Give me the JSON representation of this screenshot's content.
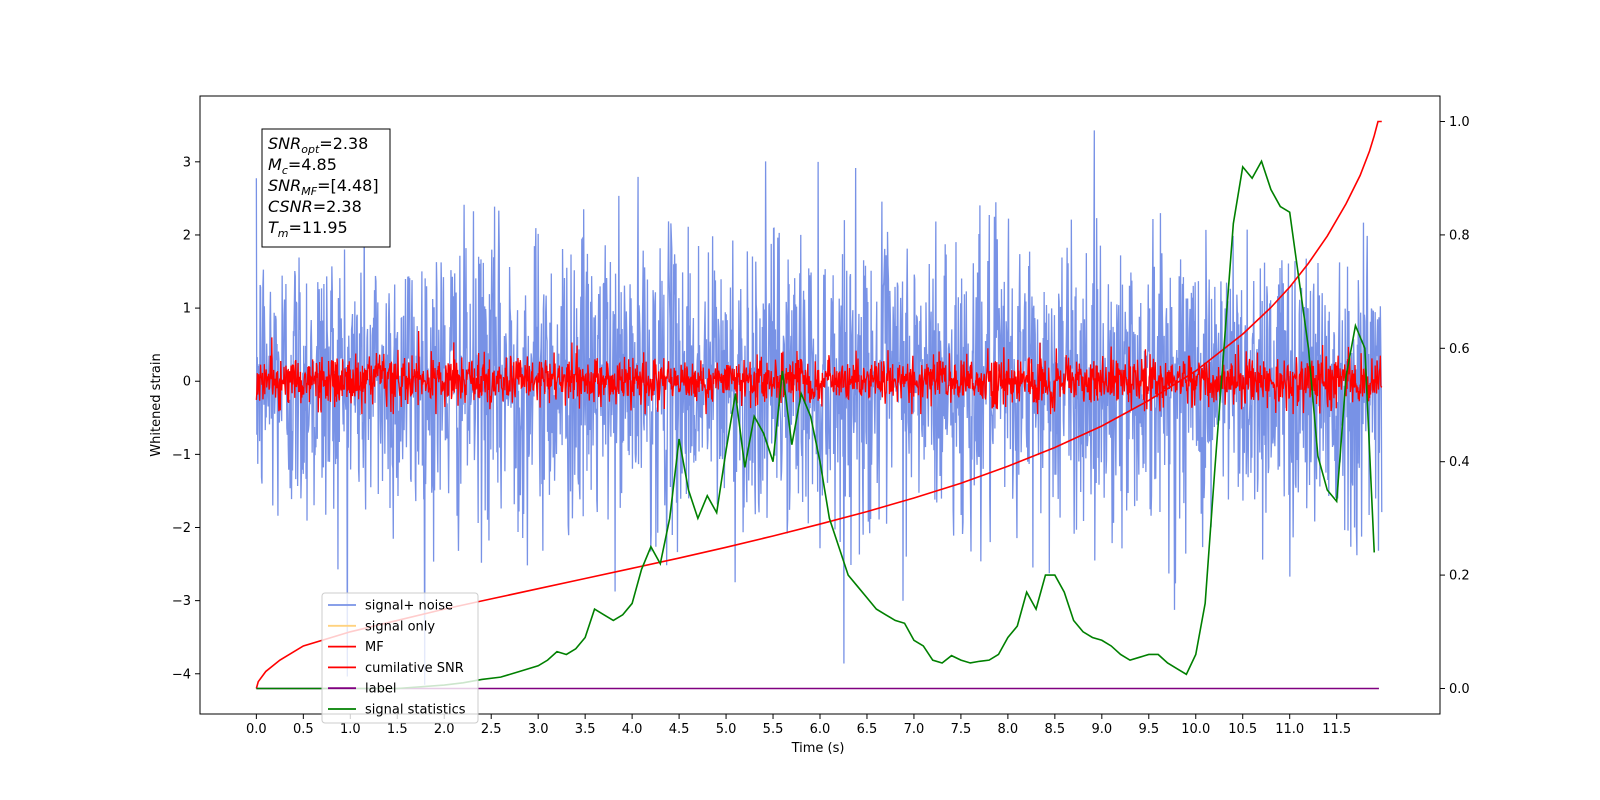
{
  "chart_data": {
    "type": "line",
    "xlabel": "Time (s)",
    "ylabel": "Whitened strain",
    "xlim": [
      -0.6,
      12.6
    ],
    "ylim": [
      -4.55,
      3.9
    ],
    "y2lim": [
      -0.045,
      1.045
    ],
    "x_ticks": [
      0.0,
      0.5,
      1.0,
      1.5,
      2.0,
      2.5,
      3.0,
      3.5,
      4.0,
      4.5,
      5.0,
      5.5,
      6.0,
      6.5,
      7.0,
      7.5,
      8.0,
      8.5,
      9.0,
      9.5,
      10.0,
      10.5,
      11.0,
      11.5
    ],
    "x_tick_labels": [
      "0.0",
      "0.5",
      "1.0",
      "1.5",
      "2.0",
      "2.5",
      "3.0",
      "3.5",
      "4.0",
      "4.5",
      "5.0",
      "5.5",
      "6.0",
      "6.5",
      "7.0",
      "7.5",
      "8.0",
      "8.5",
      "9.0",
      "9.5",
      "10.0",
      "10.5",
      "11.0",
      "11.5"
    ],
    "y_ticks": [
      3,
      2,
      1,
      0,
      -1,
      -2,
      -3,
      -4
    ],
    "y_tick_labels": [
      "3",
      "2",
      "1",
      "0",
      "−1",
      "−2",
      "−3",
      "−4"
    ],
    "y2_ticks": [
      1.0,
      0.8,
      0.6,
      0.4,
      0.2,
      0.0
    ],
    "y2_tick_labels": [
      "1.0",
      "0.8",
      "0.6",
      "0.4",
      "0.2",
      "0.0"
    ],
    "annotation": {
      "lines": [
        {
          "base": "SNR",
          "sub": "opt",
          "value": "=2.38"
        },
        {
          "base": "M",
          "sub": "c",
          "value": "=4.85"
        },
        {
          "base": "SNR",
          "sub": "MF",
          "value": "=[4.48]"
        },
        {
          "base": "CSNR",
          "sub": "",
          "value": "=2.38"
        },
        {
          "base": "T",
          "sub": "m",
          "value": "=11.95"
        }
      ]
    },
    "legend": {
      "placement": "lower-left",
      "entries": [
        {
          "label": "signal+ noise",
          "color": "#7892e6"
        },
        {
          "label": "signal only",
          "color": "#ffd27f"
        },
        {
          "label": "MF",
          "color": "#ff0000"
        },
        {
          "label": "cumilative SNR",
          "color": "#ff0000"
        },
        {
          "label": "label",
          "color": "#800080"
        },
        {
          "label": "signal statistics",
          "color": "#008000"
        }
      ]
    },
    "series": [
      {
        "name": "signal+ noise",
        "axis": "left",
        "color": "#7892e6",
        "kind": "noise",
        "t_range": [
          0.0,
          11.98
        ],
        "approx_std": 1.0,
        "approx_range": [
          -4.15,
          3.55
        ]
      },
      {
        "name": "MF",
        "axis": "left",
        "color": "#ff0000",
        "kind": "noise",
        "t_range": [
          0.0,
          11.98
        ],
        "approx_std": 0.17,
        "approx_range": [
          -0.45,
          1.0
        ]
      },
      {
        "name": "cumilative SNR",
        "axis": "right",
        "color": "#ff0000",
        "x": [
          0.0,
          0.02,
          0.1,
          0.25,
          0.5,
          1.0,
          1.5,
          2.0,
          2.5,
          3.0,
          3.5,
          4.0,
          4.5,
          5.0,
          5.5,
          6.0,
          6.5,
          7.0,
          7.5,
          8.0,
          8.5,
          9.0,
          9.5,
          10.0,
          10.5,
          10.8,
          11.0,
          11.2,
          11.4,
          11.6,
          11.75,
          11.85,
          11.9,
          11.94,
          11.98
        ],
        "y": [
          0.0,
          0.012,
          0.03,
          0.05,
          0.075,
          0.1,
          0.12,
          0.14,
          0.158,
          0.176,
          0.194,
          0.212,
          0.23,
          0.249,
          0.269,
          0.29,
          0.312,
          0.336,
          0.362,
          0.392,
          0.425,
          0.463,
          0.508,
          0.56,
          0.625,
          0.672,
          0.708,
          0.75,
          0.798,
          0.855,
          0.905,
          0.948,
          0.975,
          1.0,
          1.0
        ]
      },
      {
        "name": "label",
        "axis": "right",
        "color": "#800080",
        "x": [
          0.0,
          11.95
        ],
        "y": [
          0.0,
          0.0
        ]
      },
      {
        "name": "signal statistics",
        "axis": "right",
        "color": "#008000",
        "x": [
          0.0,
          1.5,
          2.0,
          2.2,
          2.4,
          2.6,
          2.8,
          3.0,
          3.1,
          3.2,
          3.3,
          3.4,
          3.5,
          3.6,
          3.7,
          3.8,
          3.9,
          4.0,
          4.1,
          4.2,
          4.3,
          4.4,
          4.5,
          4.6,
          4.7,
          4.8,
          4.9,
          5.0,
          5.1,
          5.2,
          5.3,
          5.4,
          5.5,
          5.6,
          5.7,
          5.8,
          5.9,
          6.0,
          6.1,
          6.2,
          6.3,
          6.4,
          6.5,
          6.6,
          6.7,
          6.8,
          6.9,
          7.0,
          7.1,
          7.2,
          7.3,
          7.4,
          7.5,
          7.6,
          7.7,
          7.8,
          7.9,
          8.0,
          8.1,
          8.2,
          8.3,
          8.4,
          8.5,
          8.6,
          8.7,
          8.8,
          8.9,
          9.0,
          9.1,
          9.2,
          9.3,
          9.4,
          9.5,
          9.6,
          9.7,
          9.8,
          9.9,
          10.0,
          10.1,
          10.2,
          10.3,
          10.4,
          10.5,
          10.6,
          10.7,
          10.8,
          10.9,
          11.0,
          11.1,
          11.2,
          11.3,
          11.4,
          11.5,
          11.6,
          11.7,
          11.8,
          11.9
        ],
        "y": [
          0.0,
          0.0,
          0.006,
          0.01,
          0.016,
          0.02,
          0.03,
          0.04,
          0.05,
          0.065,
          0.06,
          0.07,
          0.09,
          0.14,
          0.13,
          0.12,
          0.13,
          0.15,
          0.21,
          0.25,
          0.22,
          0.3,
          0.44,
          0.35,
          0.3,
          0.34,
          0.31,
          0.42,
          0.52,
          0.39,
          0.48,
          0.45,
          0.4,
          0.56,
          0.43,
          0.52,
          0.48,
          0.4,
          0.3,
          0.25,
          0.2,
          0.18,
          0.16,
          0.14,
          0.13,
          0.12,
          0.115,
          0.085,
          0.075,
          0.05,
          0.045,
          0.058,
          0.05,
          0.045,
          0.048,
          0.05,
          0.06,
          0.09,
          0.11,
          0.17,
          0.14,
          0.2,
          0.2,
          0.17,
          0.12,
          0.1,
          0.09,
          0.085,
          0.075,
          0.06,
          0.05,
          0.055,
          0.06,
          0.06,
          0.045,
          0.035,
          0.025,
          0.06,
          0.15,
          0.38,
          0.6,
          0.82,
          0.92,
          0.9,
          0.93,
          0.88,
          0.85,
          0.84,
          0.72,
          0.6,
          0.41,
          0.35,
          0.33,
          0.55,
          0.64,
          0.6,
          0.24
        ]
      }
    ]
  }
}
